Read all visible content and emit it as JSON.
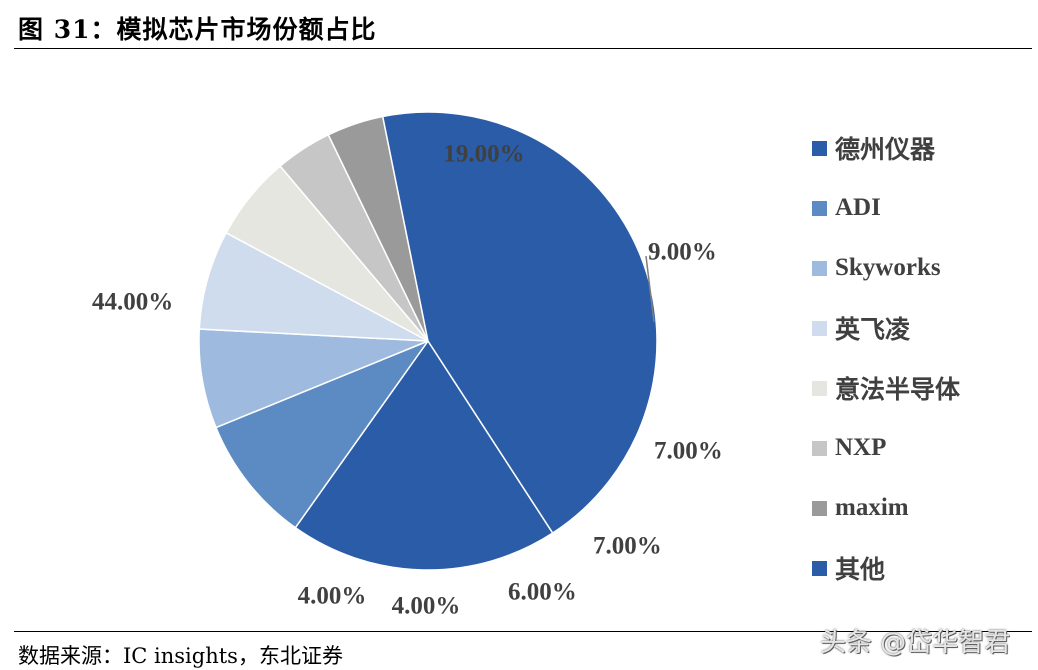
{
  "header": {
    "title": "图 31：模拟芯片市场份额占比"
  },
  "footer": {
    "source": "数据来源：IC insights，东北证券"
  },
  "watermark": {
    "text": "头条 @岱华智君"
  },
  "chart_data": {
    "type": "pie",
    "title": "",
    "legend_position": "right",
    "series": [
      {
        "name": "德州仪器",
        "value": 19.0,
        "label": "19.00%",
        "color": "#2a5ca8"
      },
      {
        "name": "ADI",
        "value": 9.0,
        "label": "9.00%",
        "color": "#5b8bc2"
      },
      {
        "name": "Skyworks",
        "value": 7.0,
        "label": "7.00%",
        "color": "#9ebade"
      },
      {
        "name": "英飞凌",
        "value": 7.0,
        "label": "7.00%",
        "color": "#cfdcee"
      },
      {
        "name": "意法半导体",
        "value": 6.0,
        "label": "6.00%",
        "color": "#e6e6e1"
      },
      {
        "name": "NXP",
        "value": 4.0,
        "label": "4.00%",
        "color": "#c6c6c6"
      },
      {
        "name": "maxim",
        "value": 4.0,
        "label": "4.00%",
        "color": "#9a9a9a"
      },
      {
        "name": "其他",
        "value": 44.0,
        "label": "44.00%",
        "color": "#2a5ca8"
      }
    ]
  }
}
